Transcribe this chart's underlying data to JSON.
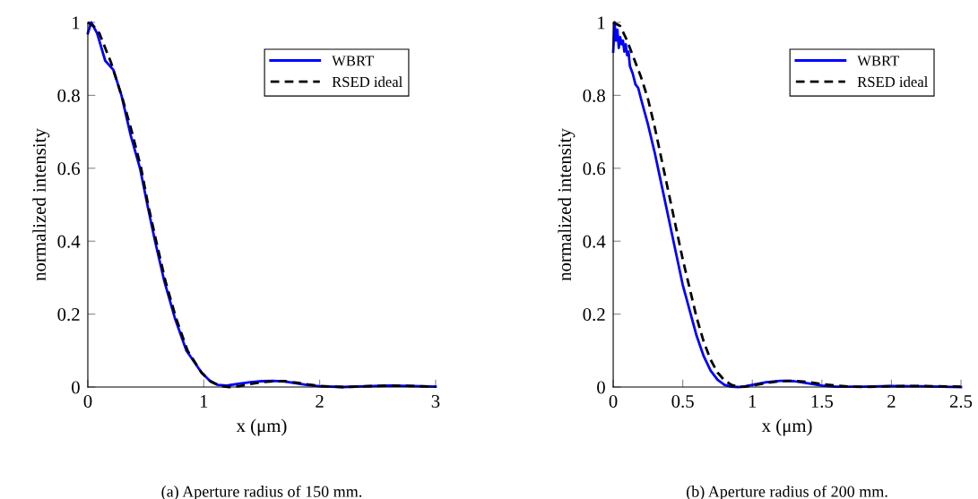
{
  "chart_data": [
    {
      "type": "line",
      "xlabel": "x (μm)",
      "ylabel": "normalized intensity",
      "xlim": [
        0,
        3
      ],
      "ylim": [
        0,
        1
      ],
      "xticks": [
        0,
        1,
        2,
        3
      ],
      "yticks": [
        0,
        0.2,
        0.4,
        0.6,
        0.8,
        1
      ],
      "grid": false,
      "legend": "top right",
      "annotations": [
        "(a) Aperture radius of 150 mm."
      ],
      "series": [
        {
          "name": "WBRT",
          "color": "#0000ff",
          "line_style": "solid",
          "x": [
            0,
            0.03,
            0.08,
            0.15,
            0.22,
            0.29,
            0.37,
            0.45,
            0.52,
            0.58,
            0.66,
            0.75,
            0.85,
            0.98,
            1.05,
            1.12,
            1.2,
            1.3,
            1.4,
            1.5,
            1.6,
            1.7,
            1.8,
            1.9,
            2.0,
            2.2,
            2.4,
            2.6,
            2.8,
            3.0
          ],
          "values": [
            0.97,
            1.0,
            0.97,
            0.895,
            0.87,
            0.8,
            0.69,
            0.6,
            0.49,
            0.4,
            0.29,
            0.19,
            0.1,
            0.04,
            0.018,
            0.006,
            0.004,
            0.009,
            0.013,
            0.016,
            0.017,
            0.015,
            0.01,
            0.005,
            0.002,
            0.0,
            0.002,
            0.004,
            0.003,
            0.001
          ]
        },
        {
          "name": "RSED ideal",
          "color": "#000000",
          "line_style": "dashed",
          "x": [
            0,
            0.05,
            0.1,
            0.2,
            0.3,
            0.38,
            0.46,
            0.52,
            0.59,
            0.67,
            0.76,
            0.86,
            0.98,
            1.06,
            1.14,
            1.22,
            1.3,
            1.4,
            1.5,
            1.6,
            1.7,
            1.8,
            1.9,
            2.0,
            2.2,
            2.4,
            2.6,
            2.8,
            3.0
          ],
          "values": [
            1.0,
            0.99,
            0.97,
            0.89,
            0.79,
            0.7,
            0.6,
            0.5,
            0.4,
            0.29,
            0.19,
            0.1,
            0.04,
            0.015,
            0.003,
            0.0,
            0.002,
            0.008,
            0.013,
            0.016,
            0.016,
            0.012,
            0.007,
            0.003,
            0.0,
            0.002,
            0.004,
            0.003,
            0.001
          ]
        }
      ]
    },
    {
      "type": "line",
      "xlabel": "x (μm)",
      "ylabel": "normalized intensity",
      "xlim": [
        0,
        2.5
      ],
      "ylim": [
        0,
        1
      ],
      "xticks": [
        0,
        0.5,
        1,
        1.5,
        2,
        2.5
      ],
      "yticks": [
        0,
        0.2,
        0.4,
        0.6,
        0.8,
        1
      ],
      "grid": false,
      "legend": "top right",
      "annotations": [
        "(b) Aperture radius of 200 mm."
      ],
      "series": [
        {
          "name": "WBRT",
          "color": "#0000ff",
          "line_style": "solid",
          "x": [
            0,
            0.01,
            0.02,
            0.03,
            0.04,
            0.05,
            0.06,
            0.07,
            0.08,
            0.09,
            0.1,
            0.11,
            0.12,
            0.14,
            0.16,
            0.18,
            0.2,
            0.25,
            0.3,
            0.35,
            0.4,
            0.45,
            0.5,
            0.55,
            0.6,
            0.65,
            0.7,
            0.75,
            0.8,
            0.85,
            0.9,
            0.95,
            1.0,
            1.1,
            1.2,
            1.25,
            1.3,
            1.4,
            1.5,
            1.6,
            1.8,
            2.0,
            2.2,
            2.5
          ],
          "values": [
            0.92,
            1.0,
            0.95,
            0.98,
            0.93,
            0.96,
            0.94,
            0.95,
            0.92,
            0.94,
            0.91,
            0.92,
            0.88,
            0.86,
            0.83,
            0.82,
            0.79,
            0.72,
            0.64,
            0.55,
            0.46,
            0.37,
            0.28,
            0.21,
            0.14,
            0.085,
            0.045,
            0.02,
            0.006,
            0.001,
            0.0,
            0.002,
            0.006,
            0.013,
            0.017,
            0.017,
            0.016,
            0.01,
            0.004,
            0.001,
            0.001,
            0.003,
            0.002,
            0.0
          ]
        },
        {
          "name": "RSED ideal",
          "color": "#000000",
          "line_style": "dashed",
          "x": [
            0,
            0.05,
            0.1,
            0.15,
            0.2,
            0.25,
            0.3,
            0.35,
            0.4,
            0.45,
            0.5,
            0.55,
            0.6,
            0.65,
            0.7,
            0.75,
            0.8,
            0.85,
            0.9,
            0.95,
            1.0,
            1.1,
            1.2,
            1.3,
            1.4,
            1.5,
            1.6,
            1.7,
            1.8,
            2.0,
            2.2,
            2.5
          ],
          "values": [
            1.0,
            0.99,
            0.95,
            0.9,
            0.85,
            0.79,
            0.71,
            0.62,
            0.53,
            0.44,
            0.35,
            0.27,
            0.19,
            0.125,
            0.075,
            0.04,
            0.018,
            0.006,
            0.0,
            0.001,
            0.004,
            0.011,
            0.016,
            0.017,
            0.014,
            0.008,
            0.004,
            0.001,
            0.0,
            0.002,
            0.003,
            0.001
          ]
        }
      ]
    }
  ]
}
